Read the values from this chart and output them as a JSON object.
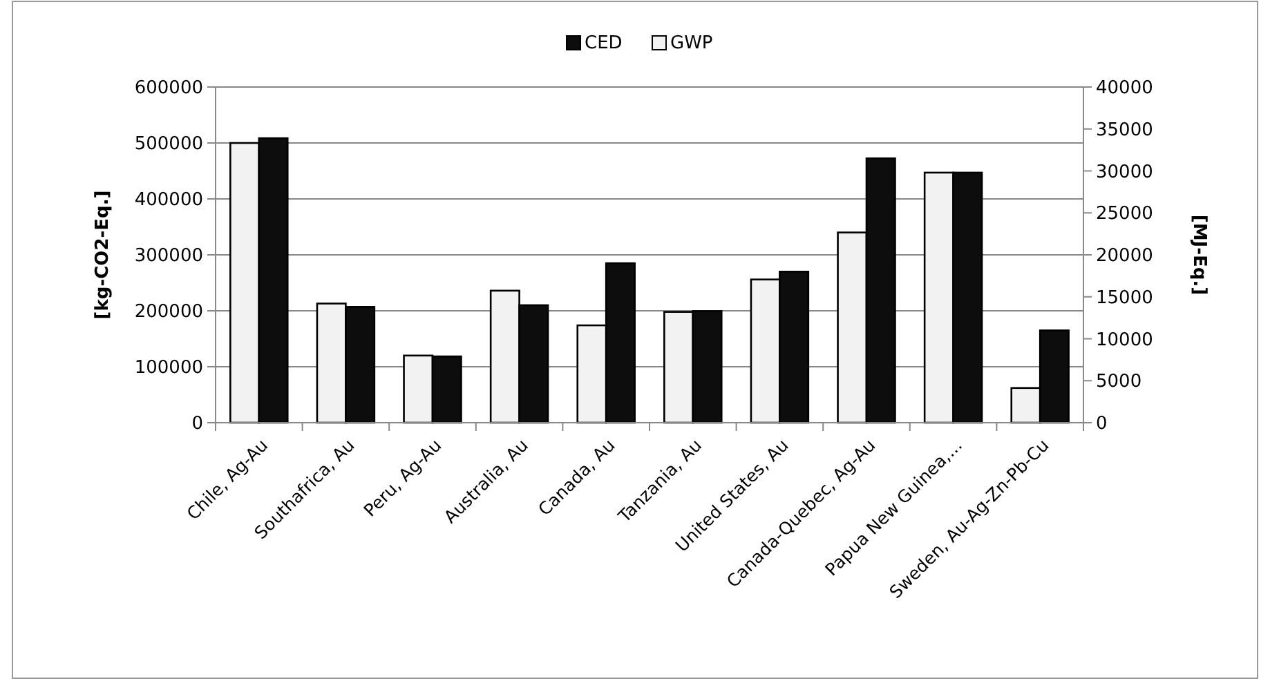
{
  "chart_data": {
    "type": "bar",
    "categories": [
      "Chile, Ag-Au",
      "Southafrica, Au",
      "Peru, Ag-Au",
      "Australia, Au",
      "Canada, Au",
      "Tanzania, Au",
      "United States, Au",
      "Canada-Quebec, Ag-Au",
      "Papua New Guinea,...",
      "Sweden, Au-Ag-Zn-Pb-Cu"
    ],
    "series": [
      {
        "name": "GWP",
        "color": "#f2f2f2",
        "values": [
          500000,
          213000,
          120000,
          236000,
          174000,
          198000,
          256000,
          340000,
          447000,
          62000
        ]
      },
      {
        "name": "CED",
        "color": "#0d0d0d",
        "axis": "y2",
        "values": [
          33900,
          13800,
          7900,
          14000,
          19000,
          13300,
          18000,
          31500,
          29800,
          11000
        ]
      }
    ],
    "ylabel": "[kg-CO2-Eq.]",
    "y2label": "[MJ-Eq.]",
    "ylim": [
      0,
      600000
    ],
    "yticks": [
      0,
      100000,
      200000,
      300000,
      400000,
      500000,
      600000
    ],
    "y2lim": [
      0,
      40000
    ],
    "y2ticks": [
      0,
      5000,
      10000,
      15000,
      20000,
      25000,
      30000,
      35000,
      40000
    ],
    "grid": "y",
    "legend": "top"
  }
}
